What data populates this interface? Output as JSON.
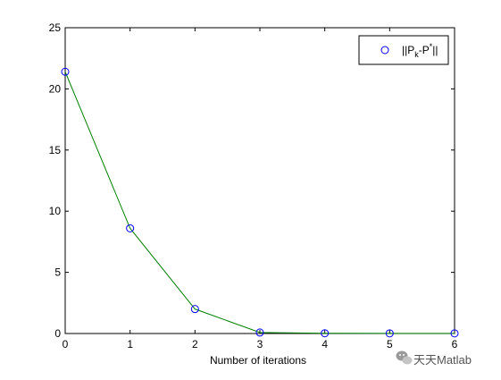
{
  "chart_data": {
    "type": "line",
    "xlabel": "Number of iterations",
    "ylabel": "",
    "title": "",
    "xlim": [
      0,
      6
    ],
    "ylim": [
      0,
      25
    ],
    "xticks": [
      0,
      1,
      2,
      3,
      4,
      5,
      6
    ],
    "yticks": [
      0,
      5,
      10,
      15,
      20,
      25
    ],
    "grid": false,
    "legend_position": "top-right",
    "series": [
      {
        "name": "||P_k-P*||",
        "legend_main": "||P",
        "legend_sub": "k",
        "legend_mid": "-P",
        "legend_sup": "*",
        "legend_end": "||",
        "x": [
          0,
          1,
          2,
          3,
          4,
          5,
          6
        ],
        "y": [
          21.4,
          8.6,
          2.0,
          0.08,
          0.02,
          0.01,
          0.01
        ],
        "line_color": "#008000",
        "marker_color": "#0000ff",
        "marker": "circle"
      }
    ]
  },
  "watermark": {
    "text": "天天Matlab",
    "icon": "wechat-icon"
  }
}
